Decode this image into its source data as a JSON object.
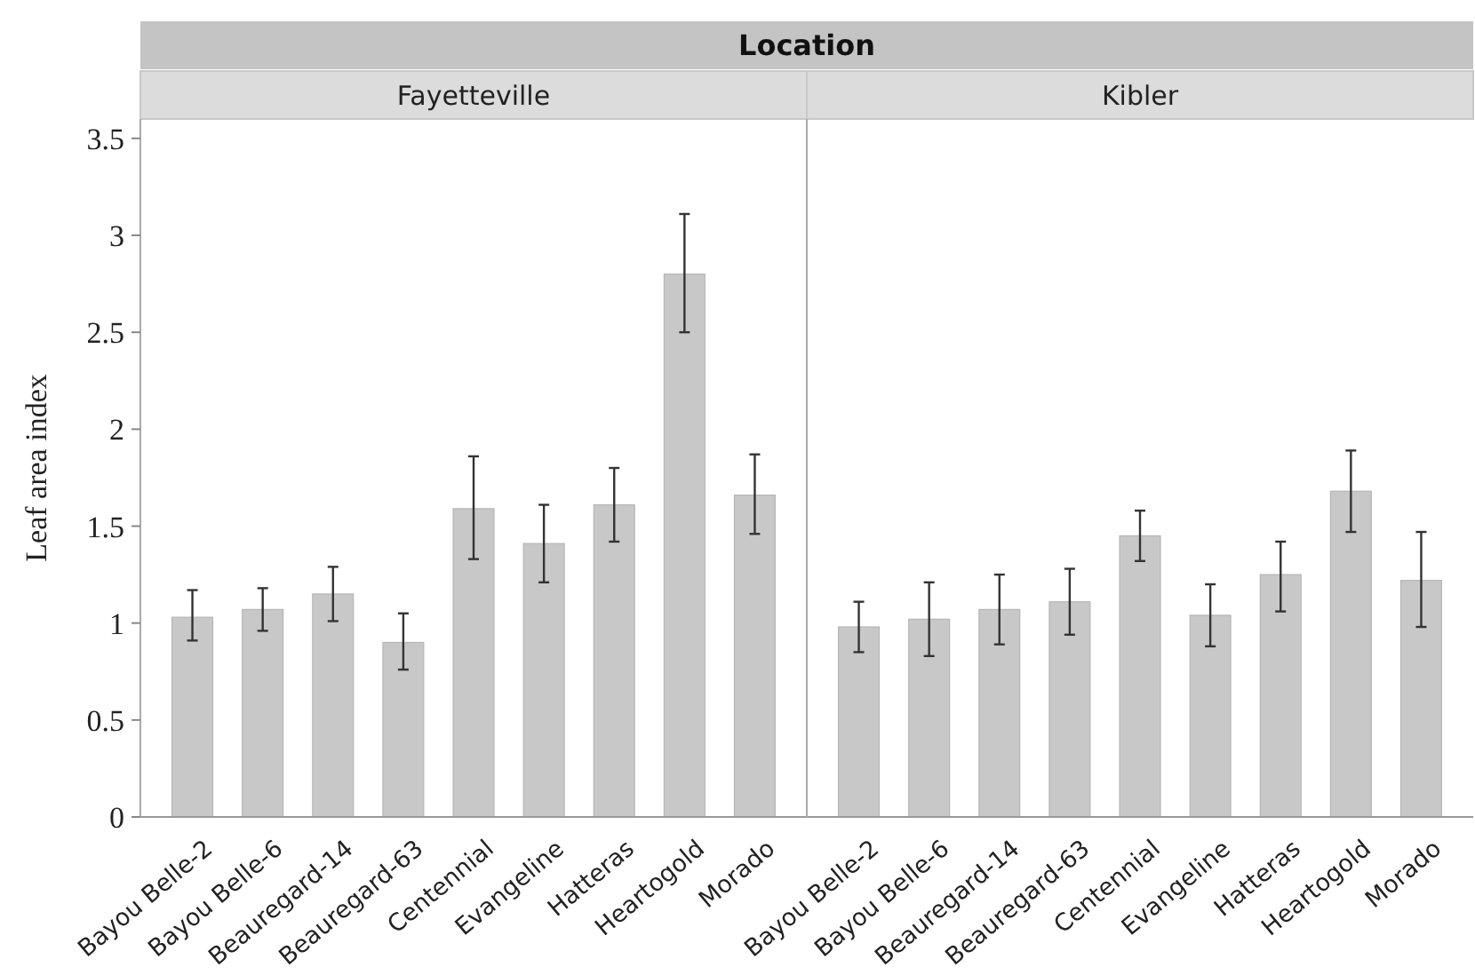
{
  "chart_data": [
    {
      "type": "bar",
      "title": "Location",
      "subtitle": "Fayetteville",
      "ylabel": "Leaf area index",
      "categories": [
        "Bayou Belle-2",
        "Bayou Belle-6",
        "Beauregard-14",
        "Beauregard-63",
        "Centennial",
        "Evangeline",
        "Hatteras",
        "Heartogold",
        "Morado"
      ],
      "values": [
        1.03,
        1.07,
        1.15,
        0.9,
        1.59,
        1.41,
        1.61,
        2.8,
        1.66
      ],
      "errors": [
        [
          0.91,
          1.17
        ],
        [
          0.96,
          1.18
        ],
        [
          1.01,
          1.29
        ],
        [
          0.76,
          1.05
        ],
        [
          1.33,
          1.86
        ],
        [
          1.21,
          1.61
        ],
        [
          1.42,
          1.8
        ],
        [
          2.5,
          3.11
        ],
        [
          1.46,
          1.87
        ]
      ],
      "color": "#c8c8c8",
      "ylim": [
        0,
        3.6
      ],
      "yticks": [
        0,
        0.5,
        1,
        1.5,
        2,
        2.5,
        3,
        3.5
      ],
      "grid": false
    },
    {
      "type": "bar",
      "subtitle": "Kibler",
      "categories": [
        "Bayou Belle-2",
        "Bayou Belle-6",
        "Beauregard-14",
        "Beauregard-63",
        "Centennial",
        "Evangeline",
        "Hatteras",
        "Heartogold",
        "Morado"
      ],
      "values": [
        0.98,
        1.02,
        1.07,
        1.11,
        1.45,
        1.04,
        1.25,
        1.68,
        1.22
      ],
      "errors": [
        [
          0.85,
          1.11
        ],
        [
          0.83,
          1.21
        ],
        [
          0.89,
          1.25
        ],
        [
          0.94,
          1.28
        ],
        [
          1.32,
          1.58
        ],
        [
          0.88,
          1.2
        ],
        [
          1.06,
          1.42
        ],
        [
          1.47,
          1.89
        ],
        [
          0.98,
          1.47
        ]
      ],
      "color": "#c8c8c8",
      "ylim": [
        0,
        3.6
      ],
      "yticks": [
        0,
        0.5,
        1,
        1.5,
        2,
        2.5,
        3,
        3.5
      ],
      "grid": false,
      "tick_labels": "x"
    }
  ]
}
